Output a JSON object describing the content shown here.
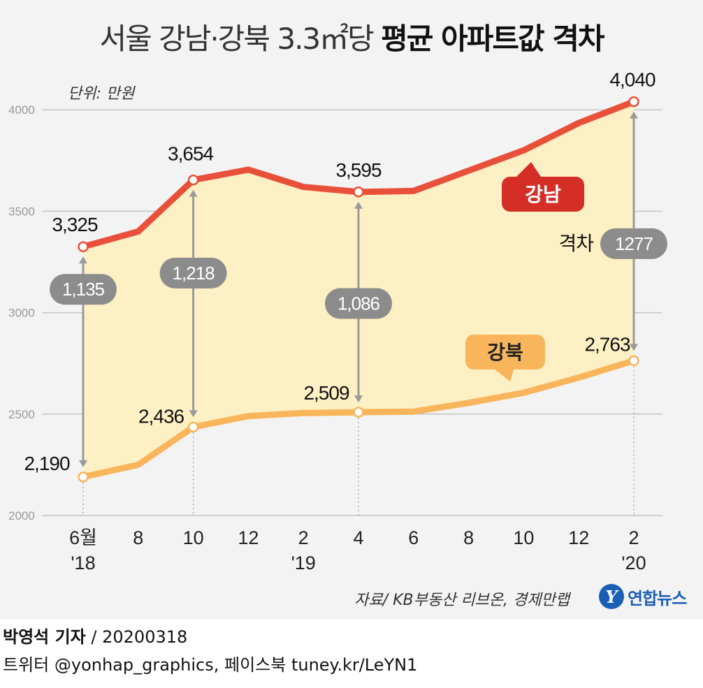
{
  "title": {
    "regular": "서울 강남·강북 3.3㎡당",
    "bold": "평균 아파트값 격차"
  },
  "unit_note": "단위: 만원",
  "source": "자료/ KB부동산 리브온, 경제만랩",
  "footer": {
    "author": "박영석 기자",
    "date": "/ 20200318",
    "social": "트위터 @yonhap_graphics, 페이스북 tuney.kr/LeYN1"
  },
  "logo": {
    "mark": "Y",
    "name": "연합뉴스"
  },
  "colors": {
    "gangnam": "#e8503a",
    "gangnam_label": "#d42e27",
    "gangbuk": "#f9b55c",
    "fill": "#fdf0c4",
    "gap_badge": "#8c8c8c"
  },
  "chart_data": {
    "type": "line",
    "title": "서울 강남·강북 3.3㎡당 평균 아파트값 격차",
    "ylabel": "단위: 만원",
    "ylim": [
      2000,
      4100
    ],
    "yticks": [
      "2000",
      "2500",
      "3000",
      "3500",
      "4000"
    ],
    "grid": true,
    "categories": [
      "6월",
      "8",
      "10",
      "12",
      "2",
      "4",
      "6",
      "8",
      "10",
      "12",
      "2"
    ],
    "year_labels": [
      "'18",
      "'19",
      "'20"
    ],
    "series": [
      {
        "name": "강남",
        "values": [
          3325,
          3400,
          3654,
          3705,
          3620,
          3595,
          3600,
          3700,
          3800,
          3935,
          4040
        ]
      },
      {
        "name": "강북",
        "values": [
          2190,
          2250,
          2436,
          2490,
          2505,
          2509,
          2512,
          2555,
          2605,
          2680,
          2763
        ]
      }
    ],
    "data_labels": [
      {
        "series": 0,
        "index": 0,
        "text": "3,325"
      },
      {
        "series": 0,
        "index": 2,
        "text": "3,654"
      },
      {
        "series": 0,
        "index": 5,
        "text": "3,595"
      },
      {
        "series": 0,
        "index": 10,
        "text": "4,040"
      },
      {
        "series": 1,
        "index": 0,
        "text": "2,190"
      },
      {
        "series": 1,
        "index": 2,
        "text": "2,436"
      },
      {
        "series": 1,
        "index": 5,
        "text": "2,509"
      },
      {
        "series": 1,
        "index": 10,
        "text": "2,763"
      }
    ],
    "gaps": [
      {
        "index": 0,
        "value": "1,135"
      },
      {
        "index": 2,
        "value": "1,218"
      },
      {
        "index": 5,
        "value": "1,086"
      },
      {
        "index": 10,
        "value": "1277",
        "label": "격차"
      }
    ]
  }
}
